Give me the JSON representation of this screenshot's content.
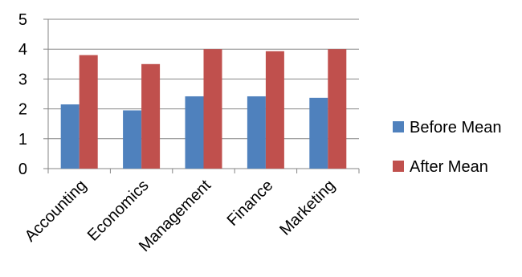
{
  "chart_data": {
    "type": "bar",
    "title": "",
    "xlabel": "",
    "ylabel": "",
    "categories": [
      "Accounting",
      "Economics",
      "Management",
      "Finance",
      "Marketing"
    ],
    "series": [
      {
        "name": "Before Mean",
        "color": "#4F81BD",
        "values": [
          2.15,
          1.95,
          2.42,
          2.42,
          2.37
        ]
      },
      {
        "name": "After Mean",
        "color": "#C0504D",
        "values": [
          3.8,
          3.5,
          4.0,
          3.93,
          4.0
        ]
      }
    ],
    "ylim": [
      0,
      5
    ],
    "yticks": [
      "0",
      "1",
      "2",
      "3",
      "4",
      "5"
    ],
    "grid": true,
    "legend_position": "right"
  }
}
